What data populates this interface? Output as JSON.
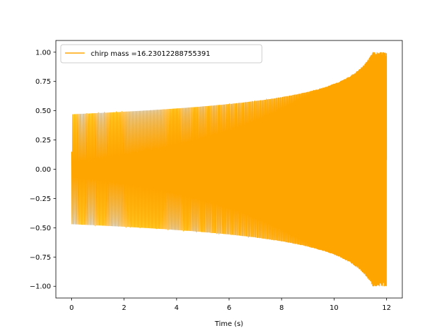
{
  "chart_data": {
    "type": "line",
    "xlabel": "Time (s)",
    "ylabel": "",
    "xlim": [
      -0.6,
      12.6
    ],
    "ylim": [
      -1.1,
      1.1
    ],
    "x_ticks": [
      0,
      2,
      4,
      6,
      8,
      10,
      12
    ],
    "x_tick_labels": [
      "0",
      "2",
      "4",
      "6",
      "8",
      "10",
      "12"
    ],
    "y_ticks": [
      1.0,
      0.75,
      0.5,
      0.25,
      0.0,
      -0.25,
      -0.5,
      -0.75,
      -1.0
    ],
    "y_tick_labels": [
      "1.00",
      "0.75",
      "0.50",
      "0.25",
      "0.00",
      "−0.25",
      "−0.50",
      "−0.75",
      "−1.00"
    ],
    "grid": false,
    "legend_position": "top-left",
    "series": [
      {
        "name": "chirp mass =16.23012288755391",
        "color": "#ffa500",
        "description_values": {
          "t_start": 0.0,
          "t_end": 12.0,
          "envelope_start": 0.47,
          "envelope_end": 1.0,
          "initial_value": 0.15,
          "final_value": 0.08
        }
      }
    ]
  }
}
